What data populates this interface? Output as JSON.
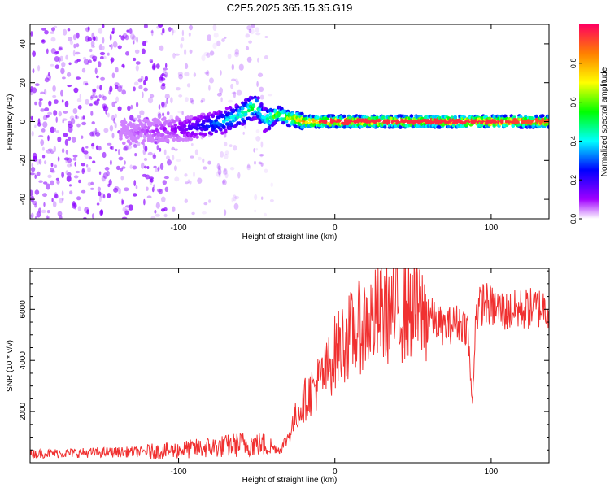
{
  "title": "C2E5.2025.365.15.35.G19",
  "chart_data": [
    {
      "type": "heatmap",
      "title": "C2E5.2025.365.15.35.G19",
      "xlabel": "Height of straight line (km)",
      "ylabel": "Frequency (Hz)",
      "xlim": [
        -195,
        137
      ],
      "ylim": [
        -50,
        50
      ],
      "xticks": [
        -100,
        0,
        100
      ],
      "xtick_labels": [
        "-100",
        "0",
        "100"
      ],
      "yticks": [
        -40,
        -20,
        0,
        20,
        40
      ],
      "ytick_labels": [
        "-40",
        "-20",
        "0",
        "20",
        "40"
      ],
      "colorbar": {
        "label": "Normalized spectral amplitude",
        "range": [
          0,
          1
        ],
        "ticks": [
          0.0,
          0.2,
          0.4,
          0.6,
          0.8
        ],
        "tick_labels": [
          "0.0",
          "0.2",
          "0.4",
          "0.6",
          "0.8"
        ]
      },
      "ridge": {
        "x": [
          -137,
          -120,
          -105,
          -90,
          -75,
          -62,
          -55,
          -50,
          -45,
          -40,
          -37,
          -33,
          -30,
          -25,
          -20,
          -10,
          0,
          20,
          60,
          100,
          137
        ],
        "freq": [
          -6,
          -5,
          -4,
          -3,
          -1,
          3,
          6,
          8,
          1,
          2,
          4,
          3,
          2,
          1,
          0,
          0,
          0,
          0,
          0,
          0,
          0
        ],
        "amplitude": [
          0.05,
          0.08,
          0.1,
          0.2,
          0.35,
          0.45,
          0.55,
          0.55,
          0.4,
          0.6,
          0.65,
          0.7,
          0.75,
          0.8,
          0.9,
          0.95,
          0.95,
          0.95,
          0.95,
          0.95,
          0.9
        ]
      }
    },
    {
      "type": "line",
      "xlabel": "Height of straight line (km)",
      "ylabel": "SNR (10 * v/v)",
      "xlim": [
        -195,
        137
      ],
      "ylim": [
        0,
        7600
      ],
      "xticks": [
        -100,
        0,
        100
      ],
      "xtick_labels": [
        "-100",
        "0",
        "100"
      ],
      "yticks": [
        2000,
        4000,
        6000
      ],
      "ytick_labels": [
        "2000",
        "4000",
        "6000"
      ],
      "series": [
        {
          "name": "SNR",
          "color": "#f03030",
          "x": [
            -195,
            -170,
            -150,
            -130,
            -110,
            -90,
            -70,
            -55,
            -45,
            -35,
            -30,
            -25,
            -20,
            -15,
            -10,
            -5,
            0,
            5,
            10,
            20,
            30,
            40,
            50,
            60,
            65,
            70,
            80,
            85,
            88,
            90,
            95,
            100,
            110,
            120,
            137
          ],
          "values": [
            350,
            380,
            400,
            420,
            450,
            550,
            650,
            750,
            700,
            500,
            1000,
            1800,
            2400,
            2800,
            3200,
            3600,
            4300,
            4700,
            5000,
            5500,
            5800,
            5950,
            5900,
            5800,
            5500,
            5300,
            5500,
            5300,
            2100,
            5800,
            6300,
            6100,
            5900,
            6000,
            6100
          ]
        }
      ]
    }
  ]
}
